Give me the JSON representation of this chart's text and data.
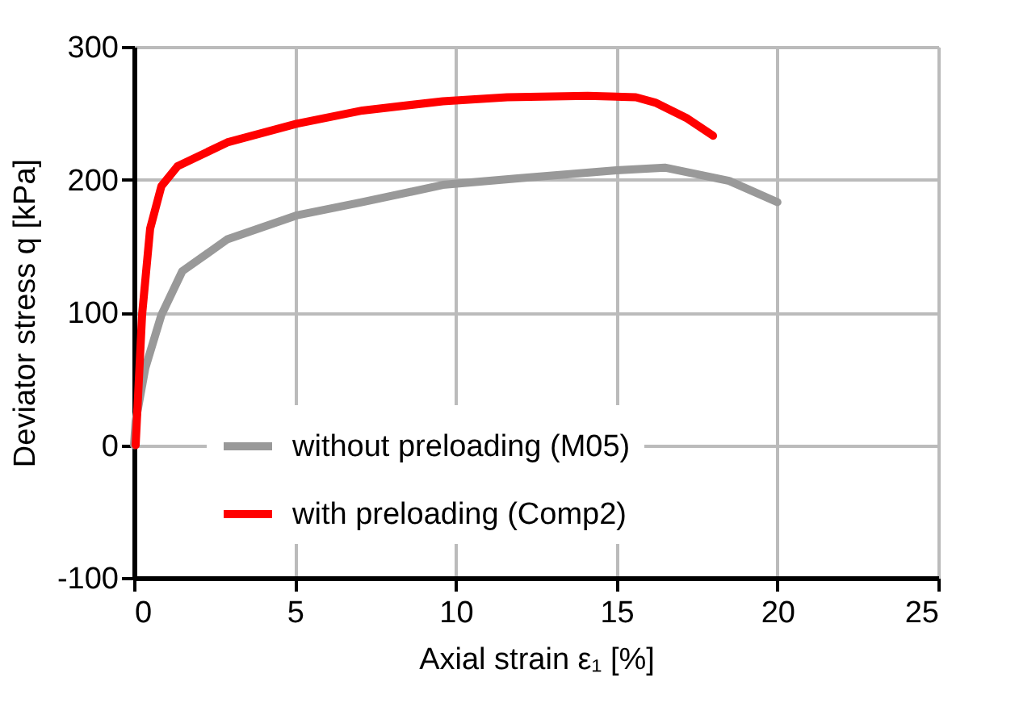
{
  "chart_data": {
    "type": "line",
    "xlabel": "Axial strain ε₁ [%]",
    "ylabel": "Deviator stress q [kPa]",
    "xlim": [
      0,
      25
    ],
    "xticks": [
      0,
      5,
      10,
      15,
      20,
      25
    ],
    "ylim": [
      -100,
      300
    ],
    "yticks": [
      -100,
      0,
      100,
      200,
      300
    ],
    "grid": true,
    "legend": "bottom",
    "marker": "none",
    "line_style": "solid",
    "series": [
      {
        "name": "without preloading (M05)",
        "color": "#999999",
        "x": [
          0,
          0.05,
          0.35,
          0.85,
          1.5,
          2.9,
          5.05,
          7.1,
          9.6,
          12,
          15,
          16.5,
          18.5,
          20
        ],
        "values": [
          0,
          18,
          58,
          98,
          131,
          155,
          173,
          183,
          196,
          201,
          207,
          209,
          199,
          183
        ]
      },
      {
        "name": "with preloading (Comp2)",
        "color": "#ff0000",
        "x": [
          0.05,
          0.25,
          0.5,
          0.85,
          1.35,
          2.9,
          5.05,
          7.1,
          9.6,
          11.6,
          14.1,
          15.6,
          16.2,
          17.2,
          18.0
        ],
        "values": [
          0,
          98,
          163,
          195,
          210,
          228,
          242,
          252,
          259,
          262,
          263,
          262,
          258,
          246,
          233
        ]
      }
    ]
  }
}
